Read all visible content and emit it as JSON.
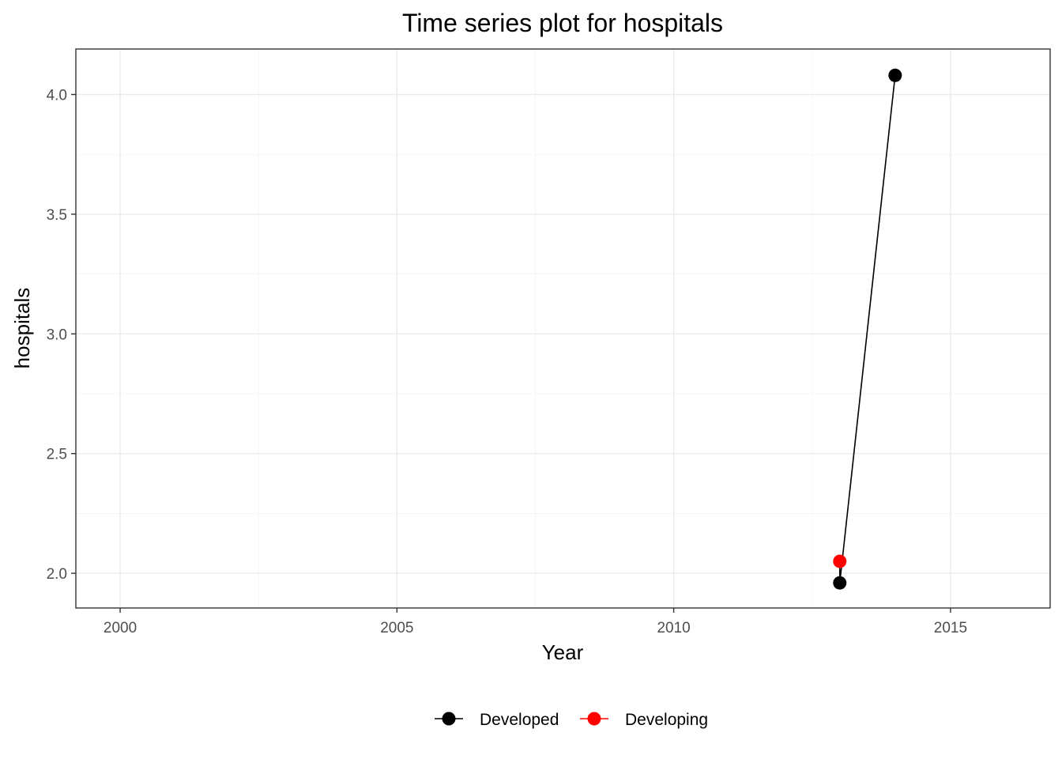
{
  "chart_data": {
    "type": "line",
    "title": "Time series plot for hospitals",
    "xlabel": "Year",
    "ylabel": "hospitals",
    "xlim": [
      1999.2,
      2016.8
    ],
    "ylim": [
      1.855,
      4.19
    ],
    "x_ticks": [
      2000,
      2005,
      2010,
      2015
    ],
    "x_tick_labels": [
      "2000",
      "2005",
      "2010",
      "2015"
    ],
    "y_ticks": [
      2.0,
      2.5,
      3.0,
      3.5,
      4.0
    ],
    "y_tick_labels": [
      "2.0",
      "2.5",
      "3.0",
      "3.5",
      "4.0"
    ],
    "grid": true,
    "legend_position": "bottom",
    "series": [
      {
        "name": "Developed",
        "color": "#000000",
        "x": [
          2013,
          2014
        ],
        "y": [
          1.96,
          4.08
        ]
      },
      {
        "name": "Developing",
        "color": "#ff0000",
        "x": [
          2013
        ],
        "y": [
          2.05
        ]
      }
    ],
    "connector": {
      "color": "#000000",
      "x": [
        2013,
        2013,
        2014
      ],
      "y": [
        2.05,
        1.96,
        4.08
      ]
    }
  }
}
